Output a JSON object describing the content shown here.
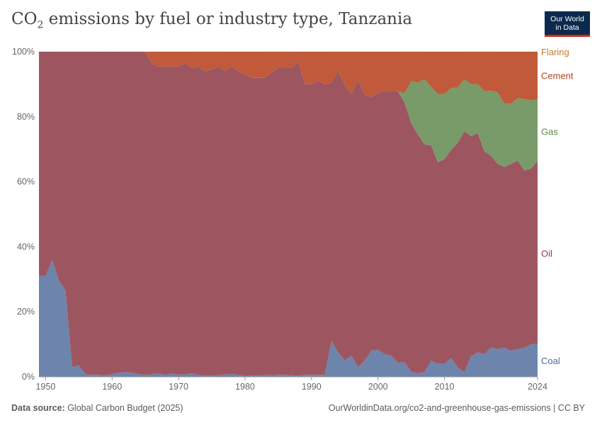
{
  "header": {
    "title_main": "CO",
    "title_sub": "2",
    "title_rest": " emissions by fuel or industry type, Tanzania",
    "logo_line1": "Our World",
    "logo_line2": "in Data"
  },
  "footer": {
    "source_label": "Data source:",
    "source_text": " Global Carbon Budget (2025)",
    "url_text": "OurWorldinData.org/co2-and-greenhouse-gas-emissions | CC BY"
  },
  "chart_data": {
    "type": "area",
    "stacked": true,
    "percent": true,
    "title": "CO₂ emissions by fuel or industry type, Tanzania",
    "xlim": [
      1949,
      2024
    ],
    "ylim": [
      0,
      100
    ],
    "x_ticks": [
      "1950",
      "1960",
      "1970",
      "1980",
      "1990",
      "2000",
      "2010",
      "2024"
    ],
    "y_ticks": [
      "0%",
      "20%",
      "40%",
      "60%",
      "80%",
      "100%"
    ],
    "grid": "horizontal dashed",
    "legend": "right-side inline labels",
    "x": [
      1949,
      1950,
      1951,
      1952,
      1953,
      1954,
      1955,
      1956,
      1957,
      1958,
      1959,
      1960,
      1961,
      1962,
      1963,
      1964,
      1965,
      1966,
      1967,
      1968,
      1969,
      1970,
      1971,
      1972,
      1973,
      1974,
      1975,
      1976,
      1977,
      1978,
      1979,
      1980,
      1981,
      1982,
      1983,
      1984,
      1985,
      1986,
      1987,
      1988,
      1989,
      1990,
      1991,
      1992,
      1993,
      1994,
      1995,
      1996,
      1997,
      1998,
      1999,
      2000,
      2001,
      2002,
      2003,
      2004,
      2005,
      2006,
      2007,
      2008,
      2009,
      2010,
      2011,
      2012,
      2013,
      2014,
      2015,
      2016,
      2017,
      2018,
      2019,
      2020,
      2021,
      2022,
      2023,
      2024
    ],
    "series": [
      {
        "name": "Coal",
        "color": "#6d84ad",
        "values": [
          31,
          31,
          36,
          29.5,
          26.5,
          3,
          3.5,
          0.8,
          0.6,
          0.6,
          0.5,
          0.8,
          1.2,
          1.5,
          1.2,
          0.8,
          0.6,
          0.8,
          1,
          0.6,
          1,
          0.7,
          0.7,
          1.1,
          0.6,
          0.4,
          0.4,
          0.5,
          0.7,
          0.9,
          0.6,
          0.3,
          0.4,
          0.4,
          0.6,
          0.5,
          0.6,
          0.6,
          0.5,
          0.4,
          0.6,
          0.6,
          0.6,
          0.6,
          11,
          7.5,
          5,
          6.5,
          3,
          5,
          8,
          8.3,
          7,
          6.5,
          4.3,
          4.5,
          1.5,
          1,
          1.5,
          5,
          4,
          4,
          5.8,
          2.8,
          1.5,
          6.3,
          7.5,
          7,
          9,
          8.5,
          9,
          8,
          8.5,
          9,
          10,
          10.2
        ]
      },
      {
        "name": "Oil",
        "color": "#9d5660",
        "values": [
          69,
          69,
          64,
          70.5,
          73.5,
          97,
          96.5,
          99.2,
          99.4,
          99.4,
          99.5,
          99.2,
          98.8,
          98.5,
          98.8,
          99.2,
          99.4,
          95.7,
          94.5,
          94.9,
          94.5,
          94.8,
          95.8,
          93.9,
          94.9,
          93.6,
          94.1,
          95,
          93.3,
          94.6,
          93.4,
          92.7,
          91.6,
          91.6,
          91.4,
          93,
          94.4,
          94.4,
          94.5,
          96.6,
          89.4,
          89.4,
          90.4,
          89.4,
          79.5,
          86.5,
          84.7,
          80.5,
          88.2,
          82,
          78,
          79,
          81,
          81.5,
          83.5,
          79.8,
          76.5,
          73.5,
          70,
          66.2,
          62,
          63,
          64,
          69.2,
          74,
          67.7,
          67.5,
          62.4,
          59,
          57,
          55.5,
          57.5,
          58,
          54.5,
          54,
          56.2
        ]
      },
      {
        "name": "Gas",
        "color": "#799a69",
        "values": [
          0,
          0,
          0,
          0,
          0,
          0,
          0,
          0,
          0,
          0,
          0,
          0,
          0,
          0,
          0,
          0,
          0,
          0,
          0,
          0,
          0,
          0,
          0,
          0,
          0,
          0,
          0,
          0,
          0,
          0,
          0,
          0,
          0,
          0,
          0,
          0,
          0,
          0,
          0,
          0,
          0,
          0,
          0,
          0,
          0,
          0,
          0,
          0,
          0,
          0,
          0,
          0,
          0,
          0,
          0,
          3,
          13,
          16,
          20,
          18,
          21,
          20,
          19,
          17,
          16,
          16,
          15,
          18.5,
          20,
          22,
          19.5,
          18.5,
          19.2,
          22,
          21,
          19
        ]
      },
      {
        "name": "Cement",
        "color": "#c05a3a",
        "values": [
          0,
          0,
          0,
          0,
          0,
          0,
          0,
          0,
          0,
          0,
          0,
          0,
          0,
          0,
          0,
          0,
          0,
          3.5,
          4.5,
          4.5,
          4.5,
          4.5,
          3.5,
          5,
          4.5,
          6,
          5.5,
          4.5,
          6,
          4.5,
          6,
          7,
          8,
          8,
          8,
          6.5,
          5,
          5,
          5,
          3,
          10,
          10,
          9,
          10,
          9.5,
          6,
          10.3,
          13,
          8.8,
          13,
          14,
          12.7,
          12,
          12,
          12.2,
          12.7,
          9,
          9.5,
          8.5,
          10.8,
          13,
          13,
          11.2,
          11,
          8.5,
          10,
          10,
          12.1,
          12,
          12.5,
          16,
          16,
          14.3,
          14.5,
          15,
          14.6
        ]
      },
      {
        "name": "Flaring",
        "color": "#b97f36",
        "values": [
          0,
          0,
          0,
          0,
          0,
          0,
          0,
          0,
          0,
          0,
          0,
          0,
          0,
          0,
          0,
          0,
          0,
          0,
          0,
          0,
          0,
          0,
          0,
          0,
          0,
          0,
          0,
          0,
          0,
          0,
          0,
          0,
          0,
          0,
          0,
          0,
          0,
          0,
          0,
          0,
          0,
          0,
          0,
          0,
          0,
          0,
          0,
          0,
          0,
          0,
          0,
          0,
          0,
          0,
          0,
          0,
          0,
          0,
          0,
          0,
          0,
          0,
          0,
          0,
          0,
          0,
          0,
          0,
          0,
          0,
          0,
          0,
          0,
          0,
          0,
          0
        ]
      }
    ],
    "labels": [
      {
        "name": "Flaring",
        "color": "#c17f2c",
        "y": 100
      },
      {
        "name": "Cement",
        "color": "#b6401e",
        "y": 92.7
      },
      {
        "name": "Gas",
        "color": "#5a8a44",
        "y": 75.5
      },
      {
        "name": "Oil",
        "color": "#8d3b48",
        "y": 38
      },
      {
        "name": "Coal",
        "color": "#4d6b9e",
        "y": 5
      }
    ]
  }
}
